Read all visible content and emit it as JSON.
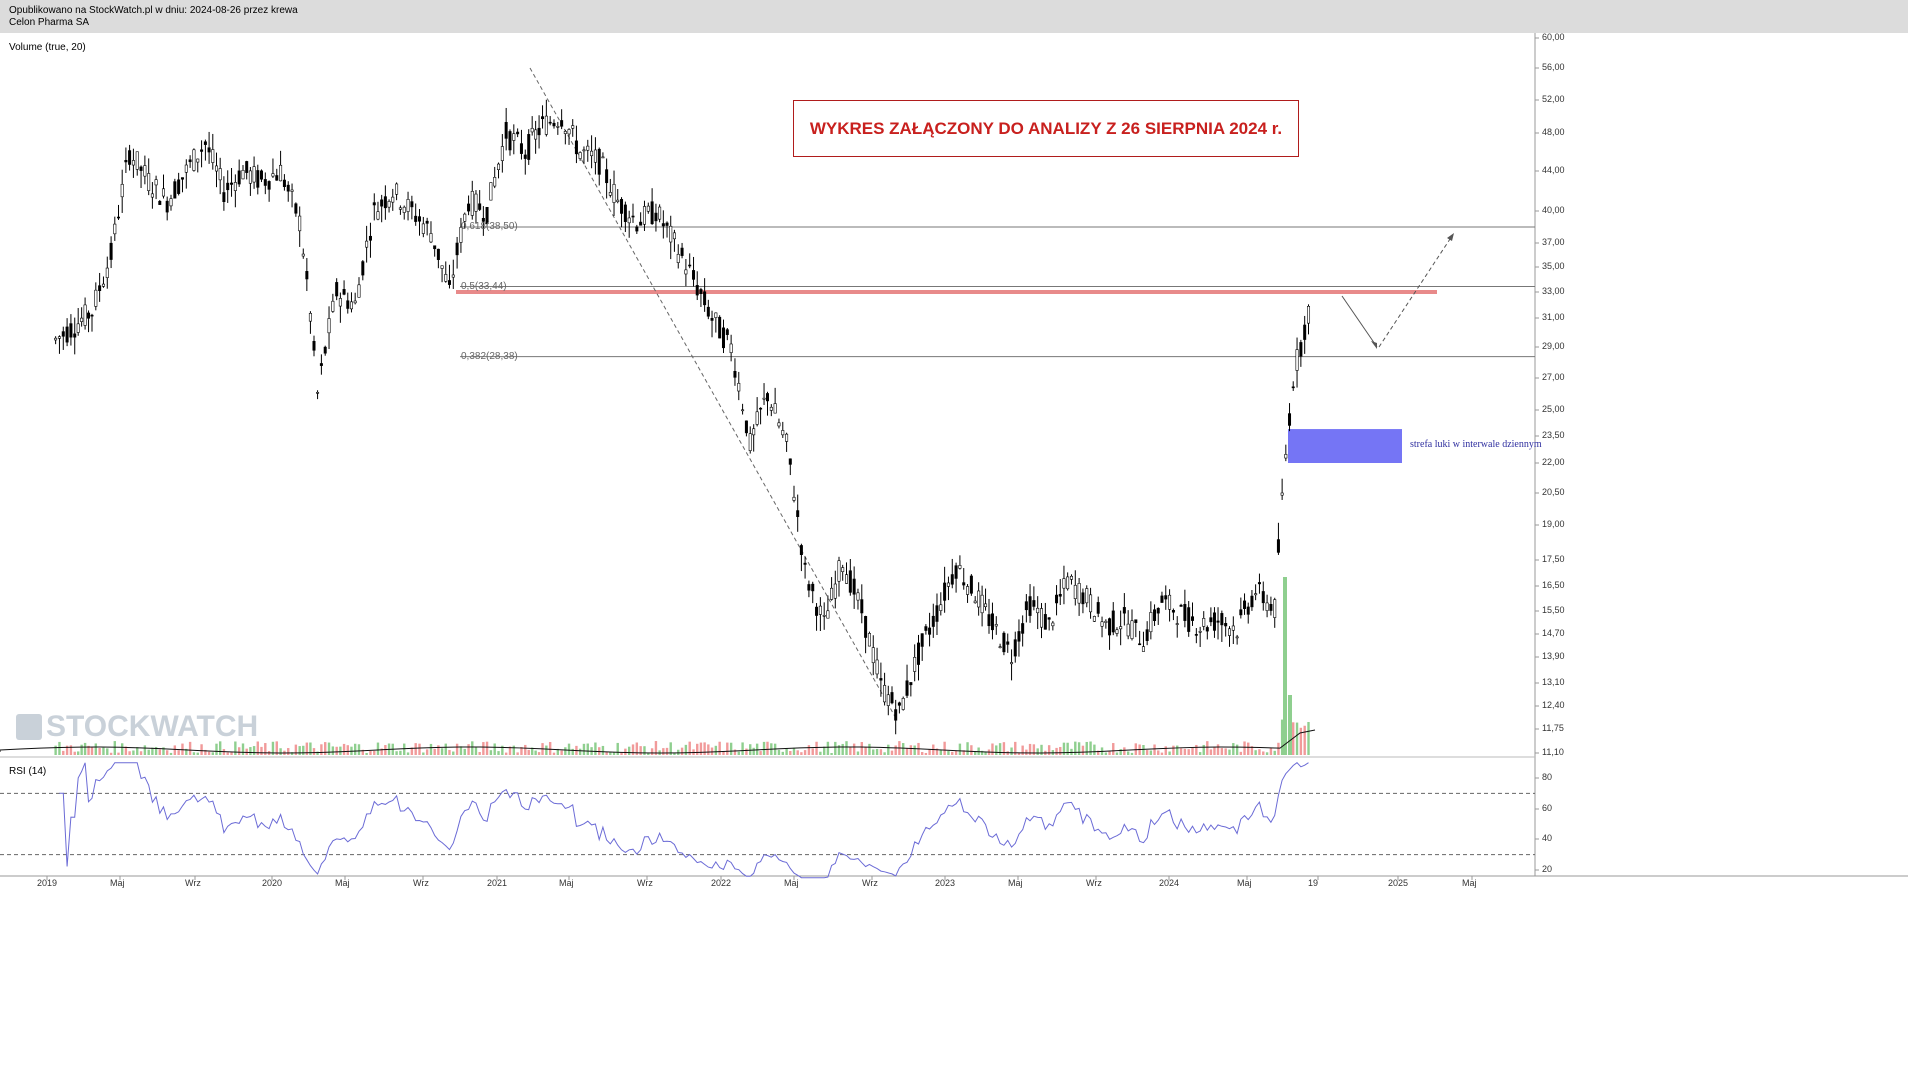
{
  "header": {
    "line1": "Opublikowano na StockWatch.pl w dniu: 2024-08-26 przez krewa",
    "line2": "Celon Pharma SA"
  },
  "watermark": "STOCKWATCH",
  "banner": "WYKRES ZAŁĄCZONY DO ANALIZY Z 26 SIERPNIA 2024 r.",
  "chart_data": {
    "type": "candlestick",
    "volume_label": "Volume (true, 20)",
    "rsi_label": "RSI (14)",
    "price_axis_ticks": [
      "60,00",
      "56,00",
      "52,00",
      "48,00",
      "44,00",
      "40,00",
      "37,00",
      "35,00",
      "33,00",
      "31,00",
      "29,00",
      "27,00",
      "25,00",
      "23,50",
      "22,00",
      "20,50",
      "19,00",
      "17,50",
      "16,50",
      "15,50",
      "14,70",
      "13,90",
      "13,10",
      "12,40",
      "11,75",
      "11,10"
    ],
    "rsi_axis_ticks": [
      "80",
      "60",
      "40",
      "20"
    ],
    "rsi_levels": [
      70,
      30
    ],
    "x_axis_ticks": [
      "2019",
      "Maj",
      "Wrz",
      "2020",
      "Maj",
      "Wrz",
      "2021",
      "Maj",
      "Wrz",
      "2022",
      "Maj",
      "Wrz",
      "2023",
      "Maj",
      "Wrz",
      "2024",
      "Maj",
      "19",
      "2025",
      "Maj"
    ],
    "fibonacci": [
      {
        "label": "0,618(38,50)",
        "price": 38.5
      },
      {
        "label": "0,5(33,44)",
        "price": 33.44
      },
      {
        "label": "0,382(28,38)",
        "price": 28.38
      }
    ],
    "resistance_price": 33.0,
    "gap_zone": {
      "label": "strefa luki w interwale dziennym",
      "low": 22.0,
      "high": 23.9
    },
    "close_series": [
      {
        "date": "2019-01",
        "close": 29.5
      },
      {
        "date": "2019-02",
        "close": 30.5
      },
      {
        "date": "2019-03",
        "close": 31.5
      },
      {
        "date": "2019-04",
        "close": 36.0
      },
      {
        "date": "2019-05",
        "close": 46.0
      },
      {
        "date": "2019-06",
        "close": 43.0
      },
      {
        "date": "2019-07",
        "close": 41.0
      },
      {
        "date": "2019-08",
        "close": 44.0
      },
      {
        "date": "2019-09",
        "close": 47.0
      },
      {
        "date": "2019-10",
        "close": 42.0
      },
      {
        "date": "2019-11",
        "close": 44.0
      },
      {
        "date": "2019-12",
        "close": 43.0
      },
      {
        "date": "2020-01",
        "close": 44.0
      },
      {
        "date": "2020-02",
        "close": 39.0
      },
      {
        "date": "2020-03",
        "close": 26.0
      },
      {
        "date": "2020-04",
        "close": 33.0
      },
      {
        "date": "2020-05",
        "close": 32.0
      },
      {
        "date": "2020-06",
        "close": 40.0
      },
      {
        "date": "2020-07",
        "close": 42.0
      },
      {
        "date": "2020-08",
        "close": 40.0
      },
      {
        "date": "2020-09",
        "close": 38.0
      },
      {
        "date": "2020-10",
        "close": 33.0
      },
      {
        "date": "2020-11",
        "close": 41.0
      },
      {
        "date": "2020-12",
        "close": 40.0
      },
      {
        "date": "2021-01",
        "close": 48.0
      },
      {
        "date": "2021-02",
        "close": 46.0
      },
      {
        "date": "2021-03",
        "close": 49.0
      },
      {
        "date": "2021-04",
        "close": 50.0
      },
      {
        "date": "2021-05",
        "close": 46.0
      },
      {
        "date": "2021-06",
        "close": 45.0
      },
      {
        "date": "2021-07",
        "close": 41.0
      },
      {
        "date": "2021-08",
        "close": 39.0
      },
      {
        "date": "2021-09",
        "close": 40.0
      },
      {
        "date": "2021-10",
        "close": 37.0
      },
      {
        "date": "2021-11",
        "close": 34.0
      },
      {
        "date": "2021-12",
        "close": 31.0
      },
      {
        "date": "2022-01",
        "close": 29.0
      },
      {
        "date": "2022-02",
        "close": 23.0
      },
      {
        "date": "2022-03",
        "close": 26.0
      },
      {
        "date": "2022-04",
        "close": 23.0
      },
      {
        "date": "2022-05",
        "close": 17.0
      },
      {
        "date": "2022-06",
        "close": 15.0
      },
      {
        "date": "2022-07",
        "close": 17.5
      },
      {
        "date": "2022-08",
        "close": 15.5
      },
      {
        "date": "2022-09",
        "close": 13.0
      },
      {
        "date": "2022-10",
        "close": 12.2
      },
      {
        "date": "2022-11",
        "close": 14.0
      },
      {
        "date": "2022-12",
        "close": 15.5
      },
      {
        "date": "2023-01",
        "close": 17.3
      },
      {
        "date": "2023-02",
        "close": 16.2
      },
      {
        "date": "2023-03",
        "close": 15.0
      },
      {
        "date": "2023-04",
        "close": 14.0
      },
      {
        "date": "2023-05",
        "close": 15.8
      },
      {
        "date": "2023-06",
        "close": 15.0
      },
      {
        "date": "2023-07",
        "close": 16.7
      },
      {
        "date": "2023-08",
        "close": 16.0
      },
      {
        "date": "2023-09",
        "close": 15.0
      },
      {
        "date": "2023-10",
        "close": 15.2
      },
      {
        "date": "2023-11",
        "close": 14.5
      },
      {
        "date": "2023-12",
        "close": 15.9
      },
      {
        "date": "2024-01",
        "close": 15.4
      },
      {
        "date": "2024-02",
        "close": 15.0
      },
      {
        "date": "2024-03",
        "close": 15.2
      },
      {
        "date": "2024-04",
        "close": 14.9
      },
      {
        "date": "2024-05",
        "close": 16.3
      },
      {
        "date": "2024-06",
        "close": 15.6
      },
      {
        "date": "2024-07",
        "close": 27.0
      },
      {
        "date": "2024-08",
        "close": 32.6
      }
    ]
  }
}
